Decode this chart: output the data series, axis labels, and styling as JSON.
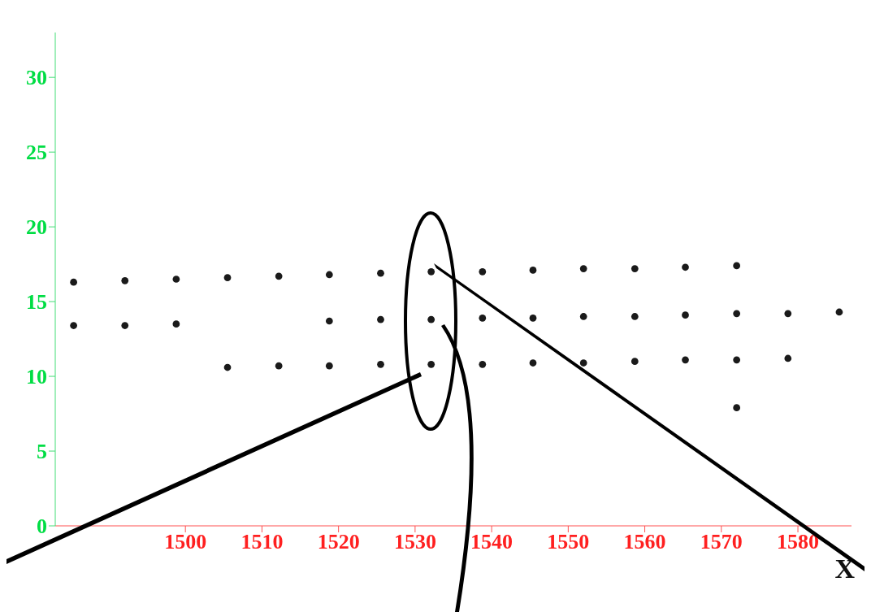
{
  "chart_data": {
    "type": "scatter",
    "xlabel": "X",
    "marker": "circle",
    "grid": false,
    "legend": false,
    "xlim": [
      1483,
      1587
    ],
    "xticks": [
      1500,
      1510,
      1520,
      1530,
      1540,
      1550,
      1560,
      1570,
      1580
    ],
    "ylim": [
      0,
      33
    ],
    "yticks": [
      0,
      5,
      10,
      15,
      20,
      25,
      30
    ],
    "series": [
      {
        "color": "#1a1a1a",
        "x": [
          1485.4,
          1492.1,
          1498.8,
          1505.5,
          1512.2,
          1518.8,
          1525.5,
          1532.1,
          1538.8,
          1545.4,
          1552.0,
          1558.7,
          1565.3,
          1572.0
        ],
        "values": [
          16.3,
          16.4,
          16.5,
          16.6,
          16.7,
          16.8,
          16.9,
          17.0,
          17.0,
          17.1,
          17.2,
          17.2,
          17.3,
          17.4
        ]
      },
      {
        "color": "#1a1a1a",
        "x": [
          1485.4,
          1492.1,
          1498.8,
          1518.8,
          1525.5,
          1532.1,
          1538.8,
          1545.4,
          1552.0,
          1558.7,
          1565.3,
          1572.0,
          1578.7,
          1585.4
        ],
        "values": [
          13.4,
          13.4,
          13.5,
          13.7,
          13.8,
          13.8,
          13.9,
          13.9,
          14.0,
          14.0,
          14.1,
          14.2,
          14.2,
          14.3
        ]
      },
      {
        "color": "#1a1a1a",
        "x": [
          1505.5,
          1512.2,
          1518.8,
          1525.5,
          1532.1,
          1538.8,
          1545.4,
          1552.0,
          1558.7,
          1565.3,
          1572.0,
          1578.7
        ],
        "values": [
          10.6,
          10.7,
          10.7,
          10.8,
          10.8,
          10.8,
          10.9,
          10.9,
          11.0,
          11.1,
          11.1,
          11.2
        ]
      },
      {
        "color": "#1a1a1a",
        "x": [
          1572.0
        ],
        "values": [
          7.9
        ]
      }
    ]
  }
}
